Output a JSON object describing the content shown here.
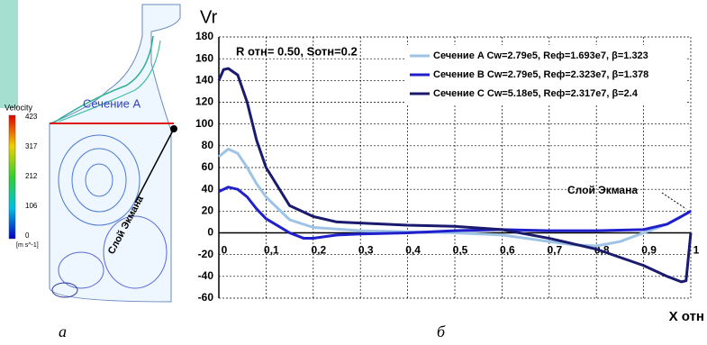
{
  "figure": {
    "velocity_label": "Velocity",
    "colorbar_ticks": [
      423,
      317,
      212,
      106,
      0
    ],
    "unit": "[m s^-1]",
    "section_label": "Сечение А",
    "ekman_label": "Слой Экмана",
    "panel_a": "а",
    "panel_b": "б"
  },
  "chart_data": {
    "type": "line",
    "ylabel": "Vr",
    "xlabel": "X отн",
    "annotations": [
      {
        "text": "R отн= 0.50, Sотн=0.2"
      },
      {
        "text": "Слой Экмана"
      }
    ],
    "xlim": [
      0,
      1
    ],
    "ylim": [
      -60,
      180
    ],
    "xticks": [
      0,
      {
        "value": 0.1,
        "label": "0,1"
      },
      {
        "value": 0.2,
        "label": "0,2"
      },
      {
        "value": 0.3,
        "label": "0,3"
      },
      {
        "value": 0.4,
        "label": "0,4"
      },
      {
        "value": 0.5,
        "label": "0,5"
      },
      {
        "value": 0.6,
        "label": "0,6"
      },
      {
        "value": 0.7,
        "label": "0,7"
      },
      {
        "value": 0.8,
        "label": "0,8"
      },
      {
        "value": 0.9,
        "label": "0,9"
      },
      1
    ],
    "yticks": [
      -60,
      -40,
      -20,
      0,
      20,
      40,
      60,
      80,
      100,
      120,
      140,
      160,
      180
    ],
    "grid": true,
    "legend": "top-right",
    "series": [
      {
        "name": "Сечение A Cw=2.79e5, Reф=1.693e7, β=1.323",
        "color": "#9dc3e6",
        "x": [
          0,
          0.02,
          0.04,
          0.06,
          0.08,
          0.1,
          0.15,
          0.2,
          0.3,
          0.4,
          0.5,
          0.6,
          0.7,
          0.75,
          0.8,
          0.85,
          0.9,
          0.95,
          0.98,
          1
        ],
        "values": [
          70,
          77,
          73,
          60,
          45,
          33,
          12,
          5,
          2,
          1,
          0,
          -2,
          -8,
          -11,
          -12,
          -8,
          0,
          8,
          15,
          20
        ]
      },
      {
        "name": "Сечение B Cw=2.79e5, Reф=2.323e7, β=1.378",
        "color": "#1f1fcc",
        "x": [
          0,
          0.02,
          0.04,
          0.06,
          0.08,
          0.1,
          0.15,
          0.18,
          0.2,
          0.25,
          0.3,
          0.4,
          0.5,
          0.6,
          0.7,
          0.8,
          0.9,
          0.95,
          0.98,
          1
        ],
        "values": [
          38,
          42,
          40,
          33,
          22,
          13,
          0,
          -5,
          -5,
          -2,
          -1,
          0,
          2,
          3,
          2,
          2,
          3,
          8,
          15,
          20
        ]
      },
      {
        "name": "Сечение C Cw=5.18e5, Reф=2.317e7, β=2.4",
        "color": "#1a1a6e",
        "x": [
          0,
          0.01,
          0.02,
          0.04,
          0.06,
          0.08,
          0.1,
          0.15,
          0.2,
          0.25,
          0.3,
          0.4,
          0.5,
          0.6,
          0.7,
          0.8,
          0.9,
          0.95,
          0.98,
          0.99,
          1
        ],
        "values": [
          140,
          150,
          151,
          145,
          120,
          85,
          60,
          25,
          15,
          10,
          9,
          7,
          6,
          3,
          -5,
          -15,
          -30,
          -40,
          -45,
          -44,
          0
        ]
      }
    ]
  }
}
